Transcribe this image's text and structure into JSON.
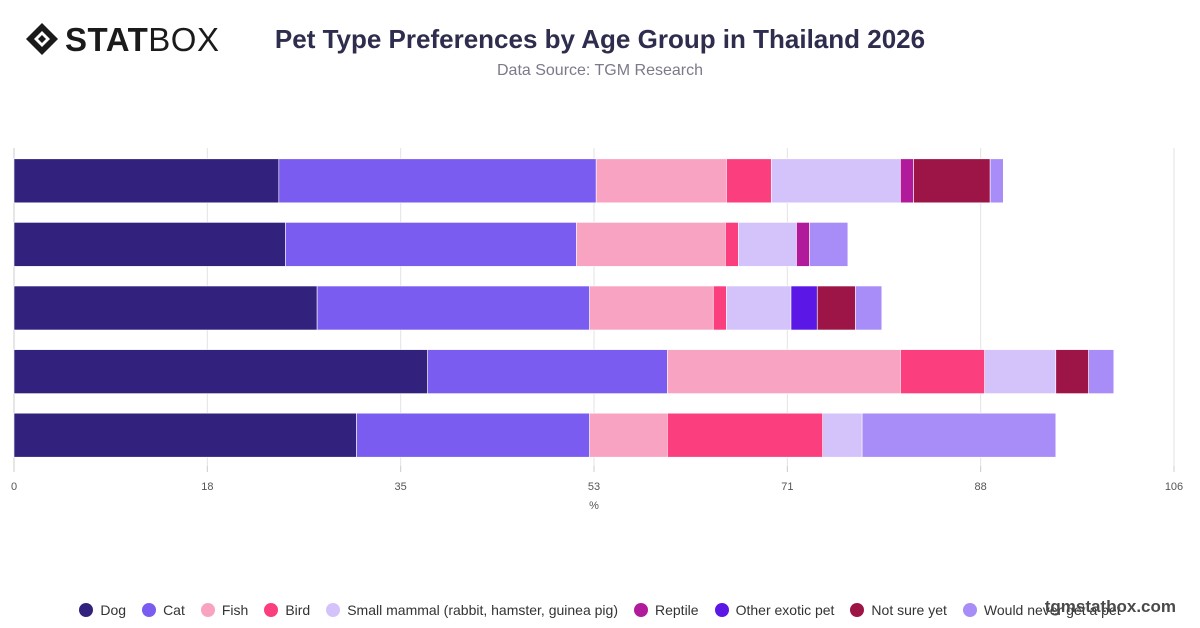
{
  "brand": {
    "bold": "STAT",
    "light": "BOX"
  },
  "watermark": "tgmstatbox.com",
  "chart_data": {
    "type": "bar",
    "orientation": "horizontal",
    "stacked": true,
    "title": "Pet Type Preferences by Age Group in Thailand 2026",
    "subtitle": "Data Source: TGM Research",
    "xlabel": "%",
    "ylabel": "",
    "xlim": [
      0,
      106
    ],
    "xticks": [
      "0",
      "18",
      "35",
      "53",
      "71",
      "88",
      "106"
    ],
    "grid": true,
    "legend_position": "bottom",
    "categories": [
      "",
      "",
      "",
      "",
      ""
    ],
    "series": [
      {
        "name": "Dog",
        "color": "#33227d",
        "values": [
          24.2,
          24.8,
          27.7,
          37.8,
          31.3
        ]
      },
      {
        "name": "Cat",
        "color": "#7b5cf0",
        "values": [
          29.0,
          26.6,
          24.9,
          21.9,
          21.3
        ]
      },
      {
        "name": "Fish",
        "color": "#f9a3c2",
        "values": [
          11.9,
          13.6,
          11.3,
          21.3,
          7.1
        ]
      },
      {
        "name": "Bird",
        "color": "#fb3f7e",
        "values": [
          4.1,
          1.2,
          1.2,
          7.7,
          14.2
        ]
      },
      {
        "name": "Small mammal (rabbit, hamster, guinea pig)",
        "color": "#d4c2fb",
        "values": [
          11.8,
          5.3,
          5.9,
          6.5,
          3.6
        ]
      },
      {
        "name": "Reptile",
        "color": "#b11b9b",
        "values": [
          1.2,
          1.2,
          0,
          0,
          0
        ]
      },
      {
        "name": "Other exotic pet",
        "color": "#5a17e6",
        "values": [
          0,
          0,
          2.4,
          0,
          0
        ]
      },
      {
        "name": "Not sure yet",
        "color": "#9d1547",
        "values": [
          7.0,
          0,
          3.5,
          3.0,
          0
        ]
      },
      {
        "name": "Would never get a pet",
        "color": "#a88cf8",
        "values": [
          1.2,
          3.5,
          2.4,
          2.3,
          17.7
        ]
      }
    ]
  }
}
